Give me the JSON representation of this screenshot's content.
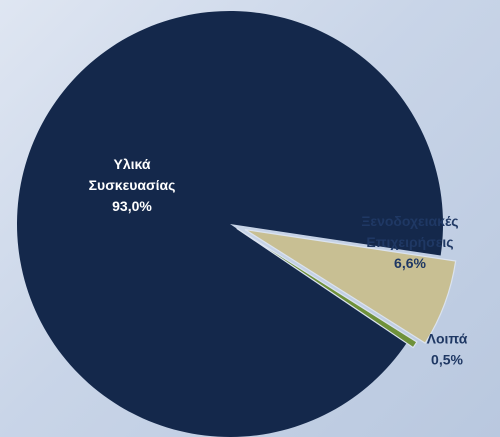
{
  "chart_data": {
    "type": "pie",
    "slices": [
      {
        "label_lines": [
          "Υλικά",
          "Συσκευασίας"
        ],
        "pct_label": "93,0%",
        "value": 93.0,
        "color": "#14284b",
        "text_color": "#ffffff"
      },
      {
        "label_lines": [
          "Ξενοδοχειακές",
          "Επιχειρήσεις"
        ],
        "pct_label": "6,6%",
        "value": 6.6,
        "color": "#c8bf93",
        "text_color": "#1f3864"
      },
      {
        "label_lines": [
          "Λοιπά"
        ],
        "pct_label": "0,5%",
        "value": 0.5,
        "color": "#6f913b",
        "text_color": "#1f3864"
      }
    ],
    "colors": {
      "background": "#c9d5e8",
      "slice_edge": "#dbe3ef"
    }
  }
}
